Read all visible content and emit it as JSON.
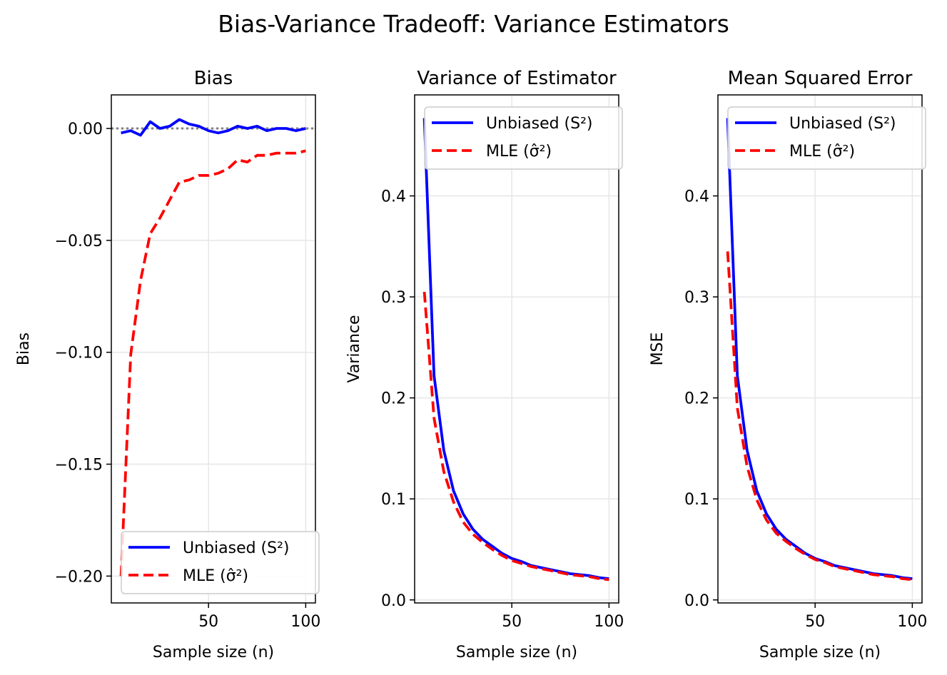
{
  "figure": {
    "suptitle": "Bias-Variance Tradeoff: Variance Estimators"
  },
  "chart_data": [
    {
      "type": "line",
      "title": "Bias",
      "xlabel": "Sample size (n)",
      "ylabel": "Bias",
      "xlim": [
        0,
        105
      ],
      "ylim": [
        -0.212,
        0.015
      ],
      "xticks": [
        50,
        100
      ],
      "yticks": [
        0.0,
        -0.05,
        -0.1,
        -0.15,
        -0.2
      ],
      "ytick_labels": [
        "0.00",
        "−0.05",
        "−0.10",
        "−0.15",
        "−0.20"
      ],
      "grid": true,
      "legend_position": "lower right",
      "reference_line": {
        "y": 0,
        "style": "dotted",
        "color": "#808080"
      },
      "series": [
        {
          "name": "Unbiased (S²)",
          "color": "#0000ff",
          "dash": "solid",
          "x": [
            5,
            10,
            15,
            20,
            25,
            30,
            35,
            40,
            45,
            50,
            55,
            60,
            65,
            70,
            75,
            80,
            85,
            90,
            95,
            100
          ],
          "y": [
            -0.002,
            -0.001,
            -0.003,
            0.003,
            0.0,
            0.001,
            0.004,
            0.002,
            0.001,
            -0.001,
            -0.002,
            -0.001,
            0.001,
            0.0,
            0.001,
            -0.001,
            0.0,
            0.0,
            -0.001,
            0.0
          ]
        },
        {
          "name": "MLE (σ̂²)",
          "color": "#ff0000",
          "dash": "dashed",
          "x": [
            5,
            10,
            15,
            20,
            25,
            30,
            35,
            40,
            45,
            50,
            55,
            60,
            65,
            70,
            75,
            80,
            85,
            90,
            95,
            100
          ],
          "y": [
            -0.2,
            -0.101,
            -0.068,
            -0.047,
            -0.04,
            -0.032,
            -0.024,
            -0.023,
            -0.021,
            -0.021,
            -0.02,
            -0.018,
            -0.014,
            -0.015,
            -0.012,
            -0.012,
            -0.011,
            -0.011,
            -0.011,
            -0.01
          ]
        }
      ]
    },
    {
      "type": "line",
      "title": "Variance of Estimator",
      "xlabel": "Sample size (n)",
      "ylabel": "Variance",
      "xlim": [
        0,
        105
      ],
      "ylim": [
        -0.003,
        0.5
      ],
      "xticks": [
        50,
        100
      ],
      "yticks": [
        0.0,
        0.1,
        0.2,
        0.3,
        0.4
      ],
      "ytick_labels": [
        "0.0",
        "0.1",
        "0.2",
        "0.3",
        "0.4"
      ],
      "grid": true,
      "legend_position": "upper right",
      "series": [
        {
          "name": "Unbiased (S²)",
          "color": "#0000ff",
          "dash": "solid",
          "x": [
            5,
            10,
            15,
            20,
            25,
            30,
            35,
            40,
            45,
            50,
            55,
            60,
            65,
            70,
            75,
            80,
            85,
            90,
            95,
            100
          ],
          "y": [
            0.477,
            0.222,
            0.148,
            0.108,
            0.085,
            0.07,
            0.06,
            0.053,
            0.046,
            0.041,
            0.038,
            0.034,
            0.032,
            0.03,
            0.028,
            0.026,
            0.025,
            0.024,
            0.022,
            0.021
          ]
        },
        {
          "name": "MLE (σ̂²)",
          "color": "#ff0000",
          "dash": "dashed",
          "x": [
            5,
            10,
            15,
            20,
            25,
            30,
            35,
            40,
            45,
            50,
            55,
            60,
            65,
            70,
            75,
            80,
            85,
            90,
            95,
            100
          ],
          "y": [
            0.305,
            0.18,
            0.127,
            0.097,
            0.077,
            0.065,
            0.057,
            0.05,
            0.044,
            0.039,
            0.036,
            0.033,
            0.031,
            0.029,
            0.027,
            0.025,
            0.024,
            0.023,
            0.021,
            0.02
          ]
        }
      ]
    },
    {
      "type": "line",
      "title": "Mean Squared Error",
      "xlabel": "Sample size (n)",
      "ylabel": "MSE",
      "xlim": [
        0,
        105
      ],
      "ylim": [
        -0.003,
        0.5
      ],
      "xticks": [
        50,
        100
      ],
      "yticks": [
        0.0,
        0.1,
        0.2,
        0.3,
        0.4
      ],
      "ytick_labels": [
        "0.0",
        "0.1",
        "0.2",
        "0.3",
        "0.4"
      ],
      "grid": true,
      "legend_position": "upper right",
      "series": [
        {
          "name": "Unbiased (S²)",
          "color": "#0000ff",
          "dash": "solid",
          "x": [
            5,
            10,
            15,
            20,
            25,
            30,
            35,
            40,
            45,
            50,
            55,
            60,
            65,
            70,
            75,
            80,
            85,
            90,
            95,
            100
          ],
          "y": [
            0.477,
            0.222,
            0.148,
            0.108,
            0.085,
            0.07,
            0.06,
            0.053,
            0.046,
            0.041,
            0.038,
            0.034,
            0.032,
            0.03,
            0.028,
            0.026,
            0.025,
            0.024,
            0.022,
            0.021
          ]
        },
        {
          "name": "MLE (σ̂²)",
          "color": "#ff0000",
          "dash": "dashed",
          "x": [
            5,
            10,
            15,
            20,
            25,
            30,
            35,
            40,
            45,
            50,
            55,
            60,
            65,
            70,
            75,
            80,
            85,
            90,
            95,
            100
          ],
          "y": [
            0.345,
            0.19,
            0.132,
            0.099,
            0.079,
            0.066,
            0.058,
            0.051,
            0.045,
            0.04,
            0.037,
            0.033,
            0.031,
            0.029,
            0.027,
            0.025,
            0.024,
            0.023,
            0.021,
            0.02
          ]
        }
      ]
    }
  ]
}
